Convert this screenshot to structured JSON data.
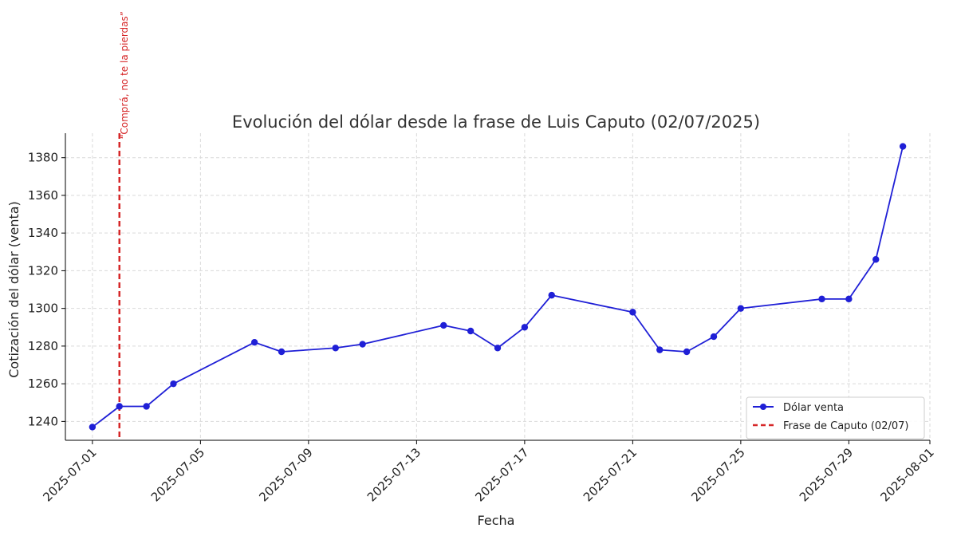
{
  "chart_data": {
    "type": "line",
    "title": "Evolución del dólar desde la frase de Luis Caputo (02/07/2025)",
    "xlabel": "Fecha",
    "ylabel": "Cotización del dólar (venta)",
    "x_ticks": [
      "2025-07-01",
      "2025-07-05",
      "2025-07-09",
      "2025-07-13",
      "2025-07-17",
      "2025-07-21",
      "2025-07-25",
      "2025-07-29",
      "2025-08-01"
    ],
    "y_ticks": [
      1240,
      1260,
      1280,
      1300,
      1320,
      1340,
      1360,
      1380
    ],
    "xlim": [
      "2025-06-30",
      "2025-08-01"
    ],
    "ylim": [
      1230,
      1393
    ],
    "grid": true,
    "legend_position": "bottom-right",
    "series": [
      {
        "name": "Dólar venta",
        "color": "#1f1fd6",
        "marker": "circle",
        "x": [
          "2025-07-01",
          "2025-07-02",
          "2025-07-03",
          "2025-07-04",
          "2025-07-07",
          "2025-07-08",
          "2025-07-10",
          "2025-07-11",
          "2025-07-14",
          "2025-07-15",
          "2025-07-16",
          "2025-07-17",
          "2025-07-18",
          "2025-07-21",
          "2025-07-22",
          "2025-07-23",
          "2025-07-24",
          "2025-07-25",
          "2025-07-28",
          "2025-07-29",
          "2025-07-30",
          "2025-07-31"
        ],
        "values": [
          1237,
          1248,
          1248,
          1260,
          1282,
          1277,
          1279,
          1281,
          1291,
          1288,
          1279,
          1290,
          1307,
          1298,
          1278,
          1277,
          1285,
          1300,
          1305,
          1305,
          1326,
          1386
        ]
      }
    ],
    "reference_line": {
      "name": "Frase de Caputo (02/07)",
      "x": "2025-07-02",
      "color": "#d62728",
      "style": "dashed",
      "annotation": "“Comprá, no te la pierdas”"
    }
  }
}
